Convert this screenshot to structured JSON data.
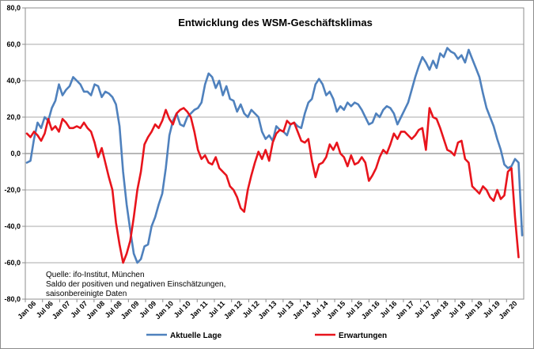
{
  "chart_data": {
    "type": "line",
    "title": "Entwicklung des WSM-Geschäftsklimas",
    "xlabel": "",
    "ylabel": "",
    "ylim": [
      -80,
      80
    ],
    "yticks": [
      "80,0",
      "60,0",
      "40,0",
      "20,0",
      "0,0",
      "-20,0",
      "-40,0",
      "-60,0",
      "-80,0"
    ],
    "xticks": [
      "Jan 06",
      "Jul 06",
      "Jan 07",
      "Jul 07",
      "Jan 08",
      "Jul 08",
      "Jan 09",
      "Jul 09",
      "Jan 10",
      "Jul 10",
      "Jan 11",
      "Jul 11",
      "Jan 12",
      "Jul 12",
      "Jan 13",
      "Jul 13",
      "Jan 14",
      "Jul 14",
      "Jan 15",
      "Jul 15",
      "Jan 16",
      "Jul 16",
      "Jan 17",
      "Jul 17",
      "Jan 18",
      "Jul 18",
      "Jan 19",
      "Jul 19",
      "Jan 20"
    ],
    "grid": true,
    "legend_position": "bottom",
    "notes": [
      "Quelle: ifo-Institut, München",
      "Saldo der positiven und negativen Einschätzungen,",
      "saisonbereinigte Daten"
    ],
    "series": [
      {
        "name": "Aktuelle Lage",
        "color": "#4f81bd",
        "values": [
          -5,
          -4,
          8,
          17,
          14,
          20,
          18,
          25,
          29,
          38,
          32,
          35,
          37,
          42,
          40,
          38,
          34,
          34,
          32,
          38,
          37,
          31,
          34,
          33,
          31,
          27,
          15,
          -10,
          -28,
          -42,
          -55,
          -60,
          -58,
          -51,
          -50,
          -40,
          -35,
          -28,
          -22,
          -8,
          10,
          18,
          22,
          16,
          15,
          20,
          22,
          24,
          25,
          28,
          38,
          44,
          42,
          36,
          40,
          32,
          37,
          30,
          29,
          23,
          27,
          22,
          20,
          24,
          22,
          20,
          12,
          8,
          10,
          7,
          15,
          13,
          12,
          10,
          16,
          17,
          15,
          14,
          22,
          28,
          30,
          38,
          41,
          38,
          32,
          34,
          30,
          23,
          26,
          24,
          28,
          26,
          28,
          27,
          24,
          20,
          16,
          17,
          22,
          20,
          24,
          26,
          25,
          22,
          16,
          20,
          24,
          28,
          35,
          42,
          48,
          53,
          50,
          46,
          51,
          47,
          55,
          53,
          58,
          56,
          55,
          52,
          54,
          50,
          57,
          52,
          47,
          42,
          33,
          25,
          20,
          15,
          8,
          2,
          -6,
          -8,
          -7,
          -3,
          -5,
          -45
        ]
      },
      {
        "name": "Erwartungen",
        "color": "#e8141c",
        "values": [
          11,
          9,
          12,
          10,
          7,
          11,
          19,
          13,
          15,
          12,
          19,
          17,
          14,
          14,
          15,
          14,
          17,
          14,
          12,
          6,
          -2,
          3,
          -5,
          -13,
          -20,
          -38,
          -50,
          -60,
          -55,
          -48,
          -35,
          -20,
          -10,
          5,
          9,
          12,
          16,
          14,
          18,
          24,
          19,
          16,
          22,
          24,
          25,
          23,
          20,
          12,
          2,
          -3,
          -1,
          -5,
          -6,
          -2,
          -8,
          -10,
          -12,
          -18,
          -20,
          -24,
          -30,
          -32,
          -20,
          -12,
          -5,
          1,
          -3,
          2,
          -4,
          6,
          11,
          13,
          12,
          18,
          16,
          17,
          12,
          7,
          6,
          8,
          -4,
          -13,
          -6,
          -5,
          -2,
          5,
          2,
          6,
          0,
          -2,
          -7,
          -1,
          -6,
          -5,
          -2,
          -5,
          -15,
          -12,
          -8,
          -2,
          2,
          0,
          5,
          11,
          8,
          12,
          12,
          10,
          8,
          10,
          13,
          14,
          2,
          25,
          20,
          19,
          14,
          8,
          2,
          1,
          -1,
          6,
          7,
          -3,
          -5,
          -18,
          -20,
          -22,
          -18,
          -20,
          -24,
          -26,
          -20,
          -25,
          -23,
          -10,
          -8,
          -35,
          -57
        ]
      }
    ]
  }
}
